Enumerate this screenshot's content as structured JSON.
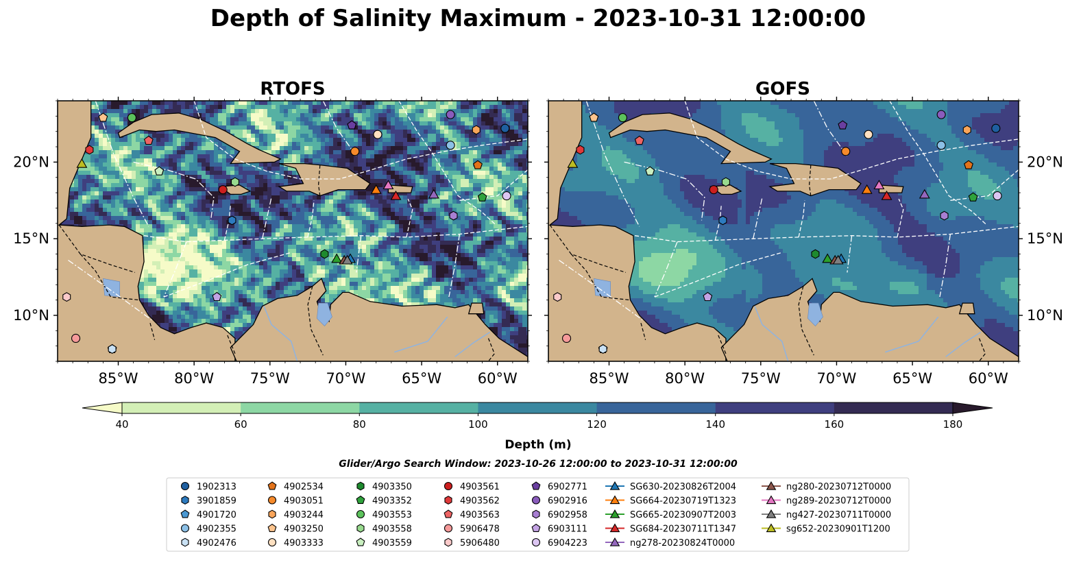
{
  "figure": {
    "title": "Depth of Salinity Maximum - 2023-10-31 12:00:00",
    "search_window": "Glider/Argo Search Window: 2023-10-26 12:00:00 to 2023-10-31 12:00:00"
  },
  "colors": {
    "land": "#d2b48c",
    "water_bodies": "#8fb3e0",
    "rivers": "#8fb3e0",
    "coastline": "#000000",
    "eez_lines": "#ffffff"
  },
  "panels": [
    {
      "title": "RTOFS",
      "lat_label_side": "left",
      "variability": "high"
    },
    {
      "title": "GOFS",
      "lat_label_side": "right",
      "variability": "smooth"
    }
  ],
  "map_extent": {
    "lon_min": -89,
    "lon_max": -58,
    "lat_min": 7,
    "lat_max": 24
  },
  "lon_ticks": [
    {
      "value": -85,
      "label": "85°W"
    },
    {
      "value": -80,
      "label": "80°W"
    },
    {
      "value": -75,
      "label": "75°W"
    },
    {
      "value": -70,
      "label": "70°W"
    },
    {
      "value": -65,
      "label": "65°W"
    },
    {
      "value": -60,
      "label": "60°W"
    }
  ],
  "lat_ticks": [
    {
      "value": 20,
      "label": "20°N"
    },
    {
      "value": 15,
      "label": "15°N"
    },
    {
      "value": 10,
      "label": "10°N"
    }
  ],
  "colorbar": {
    "title": "Depth (m)",
    "levels": [
      40,
      60,
      80,
      100,
      120,
      140,
      160,
      180
    ],
    "labels": [
      "40",
      "60",
      "80",
      "100",
      "120",
      "140",
      "160",
      "180"
    ],
    "colors": [
      "#f6fbc8",
      "#d3efb6",
      "#8dd7a4",
      "#56b1a3",
      "#3b88a0",
      "#38659a",
      "#3f3f7f",
      "#342b53",
      "#281a2c"
    ],
    "extend": "both"
  },
  "legend": {
    "columns": [
      [
        {
          "label": "1902313",
          "marker": "circle",
          "color": "#1f5fa0"
        },
        {
          "label": "3901859",
          "marker": "hexagon",
          "color": "#2d7bbf"
        },
        {
          "label": "4901720",
          "marker": "pentagon",
          "color": "#4a98d2"
        },
        {
          "label": "4902355",
          "marker": "circle",
          "color": "#8cc0e6"
        },
        {
          "label": "4902476",
          "marker": "hexagon",
          "color": "#c9e1f4"
        }
      ],
      [
        {
          "label": "4902534",
          "marker": "pentagon",
          "color": "#e3731b"
        },
        {
          "label": "4903051",
          "marker": "circle",
          "color": "#f58a2b"
        },
        {
          "label": "4903244",
          "marker": "hexagon",
          "color": "#f9a55a"
        },
        {
          "label": "4903250",
          "marker": "pentagon",
          "color": "#fcc48e"
        },
        {
          "label": "4903333",
          "marker": "circle",
          "color": "#fde0c1"
        }
      ],
      [
        {
          "label": "4903350",
          "marker": "hexagon",
          "color": "#1e8a2e"
        },
        {
          "label": "4903352",
          "marker": "pentagon",
          "color": "#2fa23c"
        },
        {
          "label": "4903553",
          "marker": "circle",
          "color": "#5cc25c"
        },
        {
          "label": "4903558",
          "marker": "hexagon",
          "color": "#98da8e"
        },
        {
          "label": "4903559",
          "marker": "pentagon",
          "color": "#c9efc0"
        }
      ],
      [
        {
          "label": "4903561",
          "marker": "circle",
          "color": "#cc1f1f"
        },
        {
          "label": "4903562",
          "marker": "hexagon",
          "color": "#e0393a"
        },
        {
          "label": "4903563",
          "marker": "pentagon",
          "color": "#ee6464"
        },
        {
          "label": "5906478",
          "marker": "circle",
          "color": "#f69a9a"
        },
        {
          "label": "5906480",
          "marker": "hexagon",
          "color": "#fbcaca"
        }
      ],
      [
        {
          "label": "6902771",
          "marker": "pentagon",
          "color": "#6a3fa0"
        },
        {
          "label": "6902916",
          "marker": "circle",
          "color": "#8a5cbc"
        },
        {
          "label": "6902958",
          "marker": "hexagon",
          "color": "#a87fd2"
        },
        {
          "label": "6903111",
          "marker": "pentagon",
          "color": "#c3a3e4"
        },
        {
          "label": "6904223",
          "marker": "circle",
          "color": "#dcc6f2"
        }
      ],
      [
        {
          "label": "SG630-20230826T2004",
          "marker": "triangle",
          "color": "#1f77b4",
          "line": true
        },
        {
          "label": "SG664-20230719T1323",
          "marker": "triangle",
          "color": "#ff7f0e",
          "line": true
        },
        {
          "label": "SG665-20230907T2003",
          "marker": "triangle",
          "color": "#2ca02c",
          "line": true
        },
        {
          "label": "SG684-20230711T1347",
          "marker": "triangle",
          "color": "#d62728",
          "line": true
        },
        {
          "label": "ng278-20230824T0000",
          "marker": "triangle",
          "color": "#9467bd",
          "line": true
        }
      ],
      [
        {
          "label": "ng280-20230712T0000",
          "marker": "triangle",
          "color": "#8c564b",
          "line": true
        },
        {
          "label": "ng289-20230712T0000",
          "marker": "triangle",
          "color": "#e377c2",
          "line": true
        },
        {
          "label": "ng427-20230711T0000",
          "marker": "triangle",
          "color": "#7f7f7f",
          "line": true
        },
        {
          "label": "sg652-20230901T1200",
          "marker": "triangle",
          "color": "#bcbd22",
          "line": true
        }
      ]
    ]
  },
  "platforms": [
    {
      "id": "1902313",
      "lon": -59.5,
      "lat": 22.2
    },
    {
      "id": "3901859",
      "lon": -77.5,
      "lat": 16.2
    },
    {
      "id": "4901720",
      "lon": -85.4,
      "lat": 7.8
    },
    {
      "id": "4902355",
      "lon": -63.1,
      "lat": 21.1
    },
    {
      "id": "4902476",
      "lon": -85.4,
      "lat": 7.8
    },
    {
      "id": "4902534",
      "lon": -61.3,
      "lat": 19.8
    },
    {
      "id": "4903051",
      "lon": -69.4,
      "lat": 20.7
    },
    {
      "id": "4903244",
      "lon": -61.4,
      "lat": 22.1
    },
    {
      "id": "4903250",
      "lon": -86.0,
      "lat": 22.9
    },
    {
      "id": "4903333",
      "lon": -67.9,
      "lat": 21.8
    },
    {
      "id": "4903350",
      "lon": -71.4,
      "lat": 14.0
    },
    {
      "id": "4903352",
      "lon": -61.0,
      "lat": 17.7
    },
    {
      "id": "4903553",
      "lon": -84.1,
      "lat": 22.9
    },
    {
      "id": "4903558",
      "lon": -77.3,
      "lat": 18.7
    },
    {
      "id": "4903559",
      "lon": -82.3,
      "lat": 19.4
    },
    {
      "id": "4903561",
      "lon": -78.1,
      "lat": 18.2
    },
    {
      "id": "4903562",
      "lon": -86.9,
      "lat": 20.8
    },
    {
      "id": "4903563",
      "lon": -83.0,
      "lat": 21.4
    },
    {
      "id": "5906478",
      "lon": -87.8,
      "lat": 8.5
    },
    {
      "id": "5906480",
      "lon": -88.4,
      "lat": 11.2
    },
    {
      "id": "6902771",
      "lon": -69.6,
      "lat": 22.4
    },
    {
      "id": "6902916",
      "lon": -63.1,
      "lat": 23.1
    },
    {
      "id": "6902958",
      "lon": -62.9,
      "lat": 16.5
    },
    {
      "id": "6903111",
      "lon": -78.5,
      "lat": 11.2
    },
    {
      "id": "6904223",
      "lon": -59.4,
      "lat": 17.8
    },
    {
      "id": "SG630-20230826T2004",
      "lon": -69.7,
      "lat": 13.7
    },
    {
      "id": "SG664-20230719T1323",
      "lon": -68.0,
      "lat": 18.2
    },
    {
      "id": "SG665-20230907T2003",
      "lon": -70.6,
      "lat": 13.7
    },
    {
      "id": "SG684-20230711T1347",
      "lon": -66.7,
      "lat": 17.8
    },
    {
      "id": "ng278-20230824T0000",
      "lon": -64.2,
      "lat": 17.9
    },
    {
      "id": "ng280-20230712T0000",
      "lon": -70.1,
      "lat": 13.6
    },
    {
      "id": "ng289-20230712T0000",
      "lon": -67.2,
      "lat": 18.5
    },
    {
      "id": "ng427-20230711T0000",
      "lon": -69.9,
      "lat": 13.6
    },
    {
      "id": "sg652-20230901T1200",
      "lon": -87.4,
      "lat": 19.9
    }
  ]
}
